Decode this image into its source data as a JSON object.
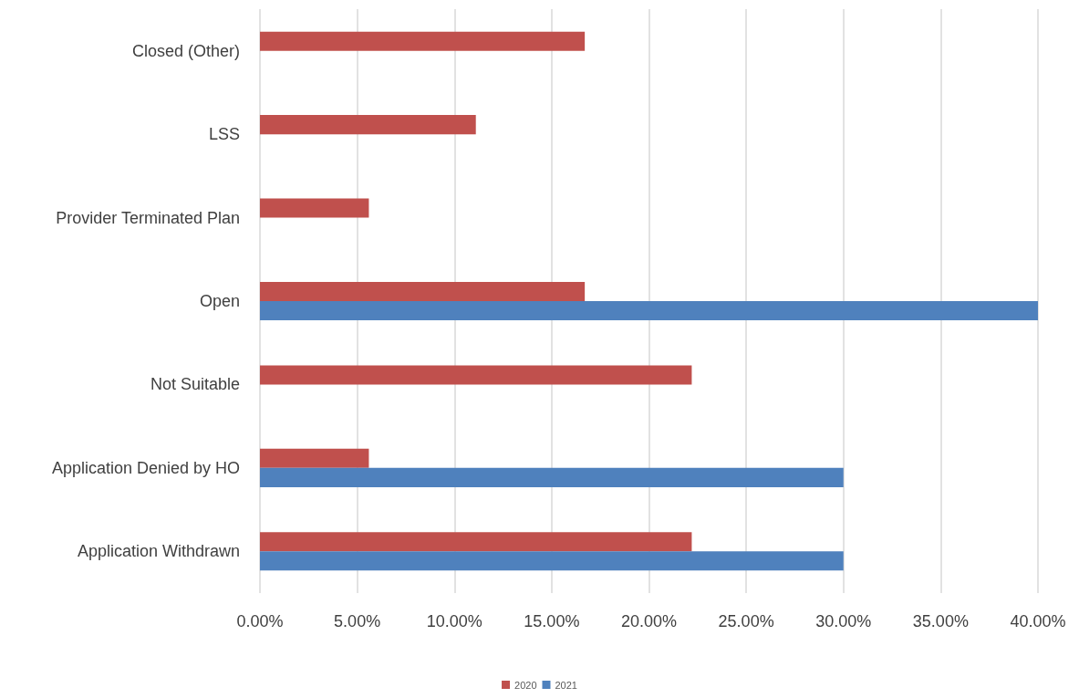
{
  "chart_data": {
    "type": "bar",
    "orientation": "horizontal",
    "categories": [
      "Closed (Other)",
      "LSS",
      "Provider Terminated Plan",
      "Open",
      "Not Suitable",
      "Application Denied by HO",
      "Application Withdrawn"
    ],
    "series": [
      {
        "name": "2020",
        "color": "#c0504d",
        "values": [
          16.7,
          11.1,
          5.6,
          16.7,
          22.2,
          5.6,
          22.2
        ]
      },
      {
        "name": "2021",
        "color": "#4f81bd",
        "values": [
          null,
          null,
          null,
          40,
          null,
          30,
          30
        ]
      }
    ],
    "xlim": [
      0,
      40
    ],
    "xticks": [
      {
        "value": 0,
        "label": "0.00%"
      },
      {
        "value": 5,
        "label": "5.00%"
      },
      {
        "value": 10,
        "label": "10.00%"
      },
      {
        "value": 15,
        "label": "15.00%"
      },
      {
        "value": 20,
        "label": "20.00%"
      },
      {
        "value": 25,
        "label": "25.00%"
      },
      {
        "value": 30,
        "label": "30.00%"
      },
      {
        "value": 35,
        "label": "35.00%"
      },
      {
        "value": 40,
        "label": "40.00%"
      }
    ],
    "grid": "x",
    "legend": "bottom"
  }
}
